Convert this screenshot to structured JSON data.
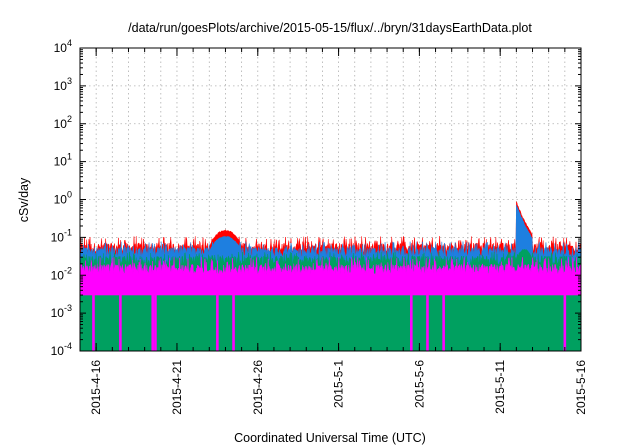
{
  "chart_data": {
    "type": "area",
    "title": "/data/run/goesPlots/archive/2015-05-15/flux/../bryn/31daysEarthData.plot",
    "xlabel": "Coordinated Universal Time (UTC)",
    "ylabel": "cSv/day",
    "x_range": [
      "2015-04-15",
      "2015-05-16"
    ],
    "ylim": [
      0.0001,
      10000
    ],
    "y_scale": "log",
    "grid": true,
    "legend": "none",
    "x_ticks": [
      "2015-4-16",
      "2015-4-21",
      "2015-4-26",
      "2015-5-1",
      "2015-5-6",
      "2015-5-11",
      "2015-5-16"
    ],
    "y_ticks": [
      {
        "base": "10",
        "exp": "-4",
        "value": 0.0001
      },
      {
        "base": "10",
        "exp": "-3",
        "value": 0.001
      },
      {
        "base": "10",
        "exp": "-2",
        "value": 0.01
      },
      {
        "base": "10",
        "exp": "-1",
        "value": 0.1
      },
      {
        "base": "10",
        "exp": "0",
        "value": 1
      },
      {
        "base": "10",
        "exp": "1",
        "value": 10
      },
      {
        "base": "10",
        "exp": "2",
        "value": 100
      },
      {
        "base": "10",
        "exp": "3",
        "value": 1000
      },
      {
        "base": "10",
        "exp": "4",
        "value": 10000
      }
    ],
    "series": [
      {
        "color": "#ff0000",
        "baseline": 0.055,
        "noise_max": 0.09,
        "enhancements": [
          {
            "start": "2015-04-23",
            "end": "2015-04-25",
            "peak": 0.16
          },
          {
            "start": "2015-05-12",
            "end": "2015-05-13",
            "peak": 0.9
          }
        ]
      },
      {
        "color": "#1e7fe0",
        "baseline": 0.042,
        "noise_max": 0.065,
        "enhancements": [
          {
            "start": "2015-04-23",
            "end": "2015-04-25",
            "peak": 0.11
          },
          {
            "start": "2015-05-12",
            "end": "2015-05-13",
            "peak": 0.75
          }
        ]
      },
      {
        "color": "#00a060",
        "baseline": 0.025,
        "noise_max": 0.035,
        "enhancements": [
          {
            "start": "2015-05-12",
            "end": "2015-05-13",
            "peak": 0.05
          }
        ]
      },
      {
        "color": "#ff00ff",
        "baseline": 0.015,
        "noise_max": 0.025,
        "floor": 0.003,
        "dropouts": [
          "2015-04-15T20:00",
          "2015-04-17T12:00",
          "2015-04-19T12:00",
          "2015-04-19T16:00",
          "2015-04-23T12:00",
          "2015-04-24T12:00",
          "2015-05-05T12:00",
          "2015-05-06T12:00",
          "2015-05-07T12:00",
          "2015-05-15T00:00"
        ],
        "dropout_value": 0.0001
      }
    ]
  }
}
